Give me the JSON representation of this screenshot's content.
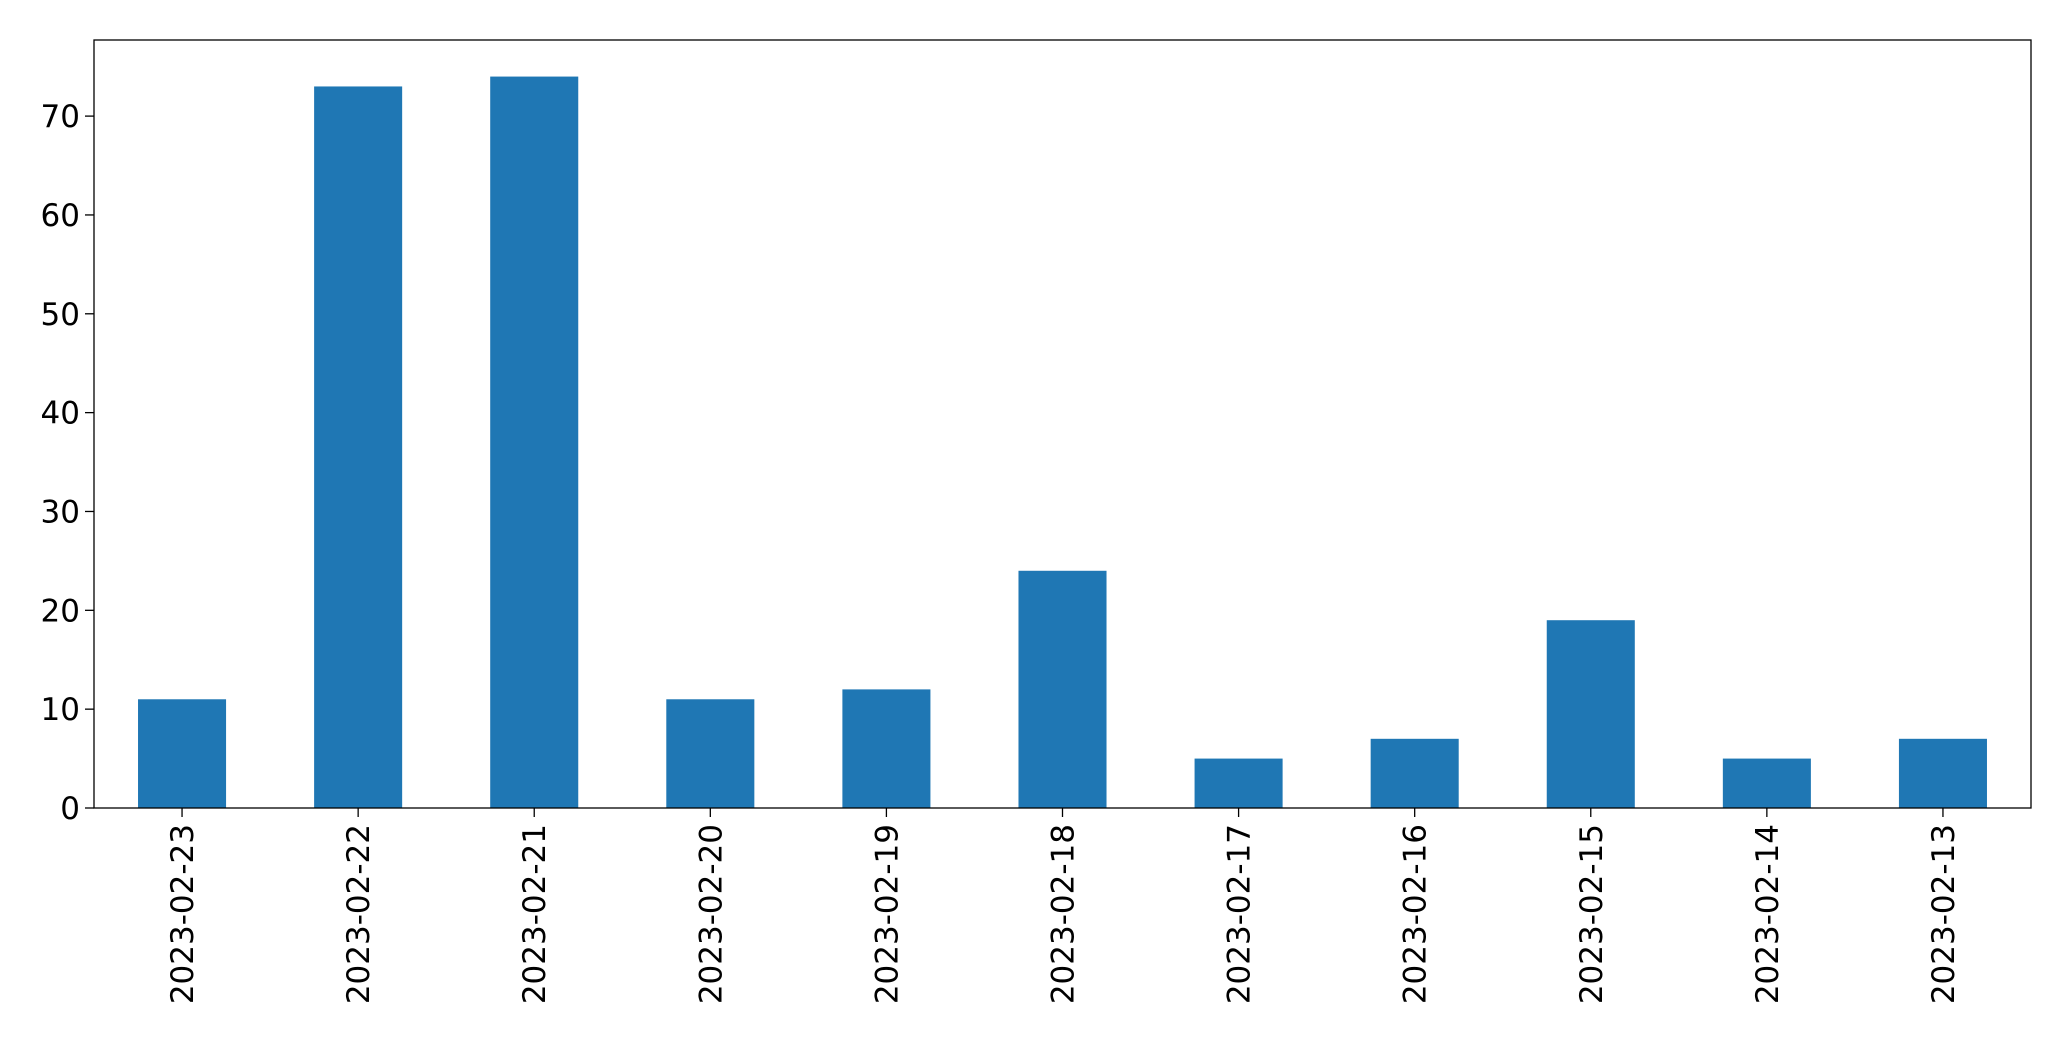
{
  "chart_data": {
    "type": "bar",
    "categories": [
      "2023-02-23",
      "2023-02-22",
      "2023-02-21",
      "2023-02-20",
      "2023-02-19",
      "2023-02-18",
      "2023-02-17",
      "2023-02-16",
      "2023-02-15",
      "2023-02-14",
      "2023-02-13"
    ],
    "values": [
      11,
      73,
      74,
      11,
      12,
      24,
      5,
      7,
      19,
      5,
      7
    ],
    "color": "#1f77b4",
    "ylim": [
      0,
      77.7
    ],
    "yticks": [
      0,
      10,
      20,
      30,
      40,
      50,
      60,
      70
    ],
    "grid": false
  }
}
